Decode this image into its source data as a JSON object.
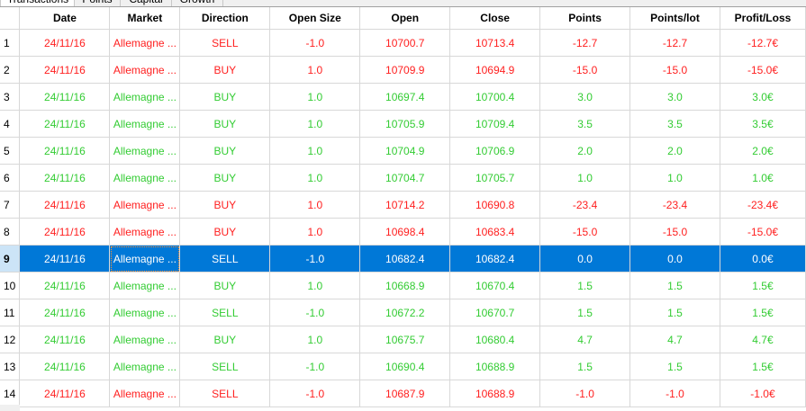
{
  "tabs": [
    {
      "label": "Transactions",
      "active": true
    },
    {
      "label": "Points"
    },
    {
      "label": "Capital"
    },
    {
      "label": "Growth"
    }
  ],
  "colors": {
    "loss": "#ff2020",
    "profit": "#33cc33",
    "selected": "#0078d7"
  },
  "columns": [
    "Date",
    "Market",
    "Direction",
    "Open Size",
    "Open",
    "Close",
    "Points",
    "Points/lot",
    "Profit/Loss"
  ],
  "selected_row": 9,
  "rows": [
    {
      "n": "1",
      "c": "red",
      "cells": [
        "24/11/16",
        "Allemagne ...",
        "SELL",
        "-1.0",
        "10700.7",
        "10713.4",
        "-12.7",
        "-12.7",
        "-12.7€"
      ]
    },
    {
      "n": "2",
      "c": "red",
      "cells": [
        "24/11/16",
        "Allemagne ...",
        "BUY",
        "1.0",
        "10709.9",
        "10694.9",
        "-15.0",
        "-15.0",
        "-15.0€"
      ]
    },
    {
      "n": "3",
      "c": "green",
      "cells": [
        "24/11/16",
        "Allemagne ...",
        "BUY",
        "1.0",
        "10697.4",
        "10700.4",
        "3.0",
        "3.0",
        "3.0€"
      ]
    },
    {
      "n": "4",
      "c": "green",
      "cells": [
        "24/11/16",
        "Allemagne ...",
        "BUY",
        "1.0",
        "10705.9",
        "10709.4",
        "3.5",
        "3.5",
        "3.5€"
      ]
    },
    {
      "n": "5",
      "c": "green",
      "cells": [
        "24/11/16",
        "Allemagne ...",
        "BUY",
        "1.0",
        "10704.9",
        "10706.9",
        "2.0",
        "2.0",
        "2.0€"
      ]
    },
    {
      "n": "6",
      "c": "green",
      "cells": [
        "24/11/16",
        "Allemagne ...",
        "BUY",
        "1.0",
        "10704.7",
        "10705.7",
        "1.0",
        "1.0",
        "1.0€"
      ]
    },
    {
      "n": "7",
      "c": "red",
      "cells": [
        "24/11/16",
        "Allemagne ...",
        "BUY",
        "1.0",
        "10714.2",
        "10690.8",
        "-23.4",
        "-23.4",
        "-23.4€"
      ]
    },
    {
      "n": "8",
      "c": "red",
      "cells": [
        "24/11/16",
        "Allemagne ...",
        "BUY",
        "1.0",
        "10698.4",
        "10683.4",
        "-15.0",
        "-15.0",
        "-15.0€"
      ]
    },
    {
      "n": "9",
      "c": "sel",
      "cells": [
        "24/11/16",
        "Allemagne ...",
        "SELL",
        "-1.0",
        "10682.4",
        "10682.4",
        "0.0",
        "0.0",
        "0.0€"
      ]
    },
    {
      "n": "10",
      "c": "green",
      "cells": [
        "24/11/16",
        "Allemagne ...",
        "BUY",
        "1.0",
        "10668.9",
        "10670.4",
        "1.5",
        "1.5",
        "1.5€"
      ]
    },
    {
      "n": "11",
      "c": "green",
      "cells": [
        "24/11/16",
        "Allemagne ...",
        "SELL",
        "-1.0",
        "10672.2",
        "10670.7",
        "1.5",
        "1.5",
        "1.5€"
      ]
    },
    {
      "n": "12",
      "c": "green",
      "cells": [
        "24/11/16",
        "Allemagne ...",
        "BUY",
        "1.0",
        "10675.7",
        "10680.4",
        "4.7",
        "4.7",
        "4.7€"
      ]
    },
    {
      "n": "13",
      "c": "green",
      "cells": [
        "24/11/16",
        "Allemagne ...",
        "SELL",
        "-1.0",
        "10690.4",
        "10688.9",
        "1.5",
        "1.5",
        "1.5€"
      ]
    },
    {
      "n": "14",
      "c": "red",
      "cells": [
        "24/11/16",
        "Allemagne ...",
        "SELL",
        "-1.0",
        "10687.9",
        "10688.9",
        "-1.0",
        "-1.0",
        "-1.0€"
      ]
    }
  ]
}
